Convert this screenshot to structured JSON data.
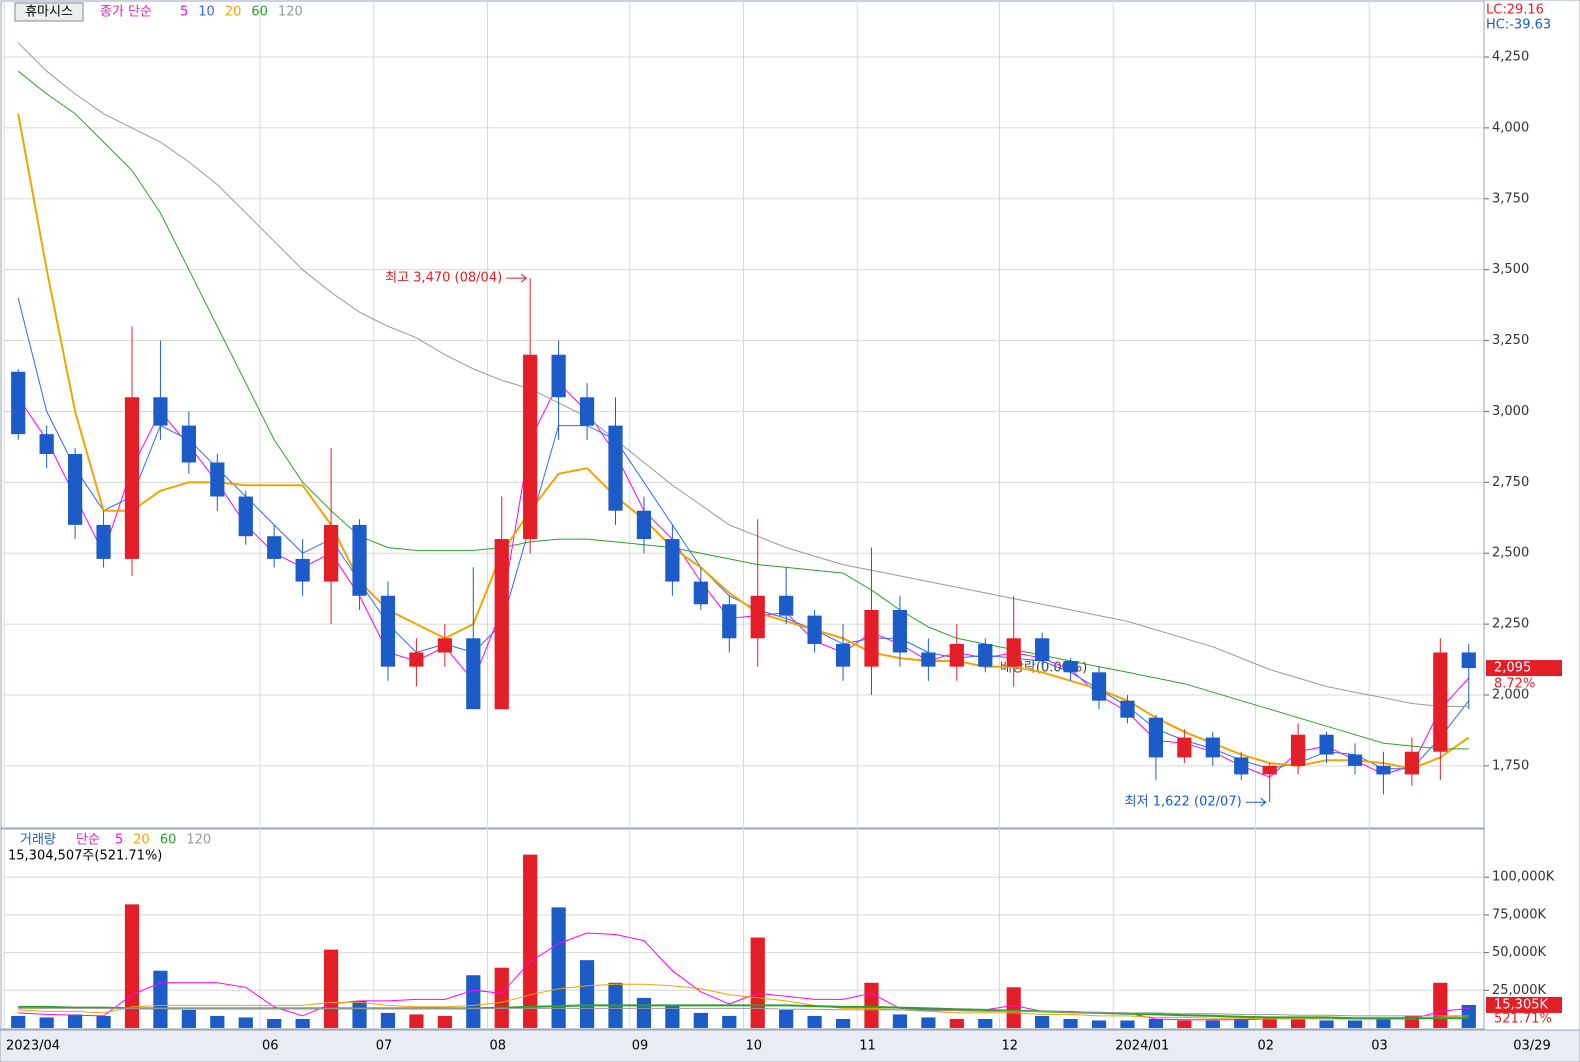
{
  "header": {
    "lc": "LC:29.16",
    "hc": "HC:-39.63",
    "last_date": "03/29"
  },
  "chart_data": [
    {
      "type": "candlestick",
      "title": "휴마시스",
      "legend_prefix": "종가 단순",
      "categories": [
        "2023/04",
        null,
        null,
        null,
        null,
        null,
        null,
        null,
        null,
        "06",
        null,
        null,
        null,
        "07",
        null,
        null,
        null,
        "08",
        null,
        null,
        null,
        null,
        "09",
        null,
        null,
        null,
        "10",
        null,
        null,
        null,
        "11",
        null,
        null,
        null,
        null,
        "12",
        null,
        null,
        null,
        "2024/01",
        null,
        null,
        null,
        null,
        "02",
        null,
        null,
        null,
        "03",
        null,
        null,
        null
      ],
      "open": [
        3140,
        2920,
        2850,
        2600,
        2480,
        3050,
        2950,
        2820,
        2700,
        2560,
        2480,
        2400,
        2600,
        2350,
        2100,
        2150,
        2200,
        1950,
        2550,
        3200,
        3050,
        2950,
        2650,
        2550,
        2400,
        2320,
        2200,
        2350,
        2280,
        2180,
        2100,
        2300,
        2150,
        2100,
        2180,
        2100,
        2200,
        2120,
        2080,
        1980,
        1920,
        1780,
        1850,
        1780,
        1720,
        1750,
        1860,
        1790,
        1750,
        1720,
        1800,
        2150
      ],
      "high": [
        3150,
        2950,
        2870,
        2650,
        3300,
        3250,
        3000,
        2850,
        2720,
        2600,
        2550,
        2870,
        2620,
        2400,
        2200,
        2250,
        2450,
        2700,
        3470,
        3250,
        3100,
        3050,
        2700,
        2600,
        2450,
        2350,
        2620,
        2450,
        2300,
        2250,
        2520,
        2350,
        2200,
        2250,
        2200,
        2350,
        2220,
        2130,
        2100,
        2000,
        1930,
        1880,
        1870,
        1800,
        1760,
        1900,
        1870,
        1830,
        1800,
        1850,
        2200,
        2180
      ],
      "low": [
        2900,
        2800,
        2550,
        2450,
        2420,
        2900,
        2780,
        2650,
        2530,
        2450,
        2350,
        2250,
        2300,
        2050,
        2030,
        2100,
        1950,
        1950,
        2500,
        2900,
        2900,
        2600,
        2500,
        2350,
        2300,
        2150,
        2100,
        2250,
        2150,
        2050,
        2000,
        2100,
        2050,
        2050,
        2080,
        2030,
        2100,
        2050,
        1950,
        1900,
        1700,
        1760,
        1750,
        1700,
        1622,
        1720,
        1760,
        1720,
        1650,
        1680,
        1700,
        1950
      ],
      "close": [
        2920,
        2850,
        2600,
        2480,
        3050,
        2950,
        2820,
        2700,
        2560,
        2480,
        2400,
        2600,
        2350,
        2100,
        2150,
        2200,
        1950,
        2550,
        3200,
        3050,
        2950,
        2650,
        2550,
        2400,
        2320,
        2200,
        2350,
        2280,
        2180,
        2100,
        2300,
        2150,
        2100,
        2180,
        2100,
        2200,
        2120,
        2080,
        1980,
        1920,
        1780,
        1850,
        1780,
        1720,
        1750,
        1860,
        1790,
        1750,
        1720,
        1800,
        2150,
        2095
      ],
      "up_color": "#e41e26",
      "down_color": "#1c5cc8",
      "series": [
        {
          "name": "5",
          "color": "#ff00ff",
          "values": [
            3050,
            2900,
            2700,
            2500,
            2800,
            3000,
            2880,
            2750,
            2600,
            2500,
            2450,
            2500,
            2350,
            2150,
            2120,
            2170,
            2050,
            2300,
            2900,
            3100,
            3000,
            2850,
            2650,
            2550,
            2400,
            2270,
            2280,
            2290,
            2190,
            2150,
            2220,
            2180,
            2120,
            2150,
            2130,
            2150,
            2130,
            2090,
            2000,
            1940,
            1840,
            1830,
            1800,
            1750,
            1710,
            1800,
            1820,
            1770,
            1720,
            1750,
            1950,
            2060
          ]
        },
        {
          "name": "10",
          "color": "#3366ff",
          "values": [
            3400,
            3000,
            2800,
            2650,
            2700,
            2950,
            2900,
            2800,
            2700,
            2600,
            2500,
            2550,
            2400,
            2250,
            2150,
            2180,
            2150,
            2250,
            2600,
            2950,
            2950,
            2900,
            2750,
            2600,
            2450,
            2350,
            2300,
            2270,
            2230,
            2180,
            2200,
            2200,
            2150,
            2130,
            2140,
            2130,
            2120,
            2080,
            2020,
            1960,
            1880,
            1840,
            1810,
            1770,
            1740,
            1760,
            1800,
            1790,
            1740,
            1740,
            1850,
            1980
          ]
        },
        {
          "name": "20",
          "color": "#f0a500",
          "values": [
            4050,
            3500,
            3000,
            2650,
            2650,
            2720,
            2750,
            2750,
            2740,
            2740,
            2740,
            2600,
            2400,
            2300,
            2250,
            2200,
            2250,
            2500,
            2650,
            2780,
            2800,
            2700,
            2620,
            2520,
            2450,
            2360,
            2290,
            2260,
            2230,
            2200,
            2150,
            2130,
            2120,
            2120,
            2100,
            2100,
            2080,
            2050,
            2020,
            1980,
            1920,
            1870,
            1830,
            1790,
            1760,
            1750,
            1770,
            1770,
            1760,
            1740,
            1780,
            1850
          ]
        },
        {
          "name": "60",
          "color": "#2ca02c",
          "values": [
            4200,
            4120,
            4050,
            3950,
            3850,
            3700,
            3500,
            3300,
            3100,
            2900,
            2750,
            2650,
            2560,
            2520,
            2510,
            2510,
            2510,
            2520,
            2540,
            2550,
            2550,
            2540,
            2530,
            2520,
            2500,
            2480,
            2460,
            2450,
            2440,
            2430,
            2370,
            2300,
            2240,
            2200,
            2180,
            2160,
            2140,
            2120,
            2100,
            2080,
            2060,
            2040,
            2010,
            1980,
            1950,
            1920,
            1890,
            1860,
            1830,
            1820,
            1810,
            1810
          ]
        },
        {
          "name": "120",
          "color": "#999999",
          "values": [
            4300,
            4200,
            4120,
            4050,
            4000,
            3950,
            3880,
            3800,
            3700,
            3600,
            3500,
            3420,
            3350,
            3300,
            3260,
            3200,
            3150,
            3110,
            3080,
            3030,
            2980,
            2900,
            2820,
            2740,
            2670,
            2600,
            2560,
            2520,
            2490,
            2460,
            2440,
            2420,
            2400,
            2380,
            2360,
            2340,
            2320,
            2300,
            2280,
            2260,
            2230,
            2200,
            2170,
            2130,
            2090,
            2060,
            2030,
            2010,
            1990,
            1970,
            1960,
            1960
          ]
        }
      ],
      "ylim": [
        1531,
        4451
      ],
      "yticks": [
        {
          "value": 1750,
          "label": "1,750"
        },
        {
          "value": 2000,
          "label": "2,000"
        },
        {
          "value": 2250,
          "label": "2,250"
        },
        {
          "value": 2500,
          "label": "2,500"
        },
        {
          "value": 2750,
          "label": "2,750"
        },
        {
          "value": 3000,
          "label": "3,000"
        },
        {
          "value": 3250,
          "label": "3,250"
        },
        {
          "value": 3500,
          "label": "3,500"
        },
        {
          "value": 3750,
          "label": "3,750"
        },
        {
          "value": 4000,
          "label": "4,000"
        },
        {
          "value": 4250,
          "label": "4,250"
        }
      ],
      "grid": true,
      "annotations": {
        "high": "최고 3,470 (08/04)",
        "low": "최저 1,622 (02/07)",
        "dividend": "배당락(0.00%)"
      },
      "price_tag": {
        "value": 2095,
        "label": "2,095",
        "change": "8.72%"
      }
    },
    {
      "type": "bar",
      "title": "거래량",
      "legend_prefix": "단순",
      "summary": "15,304,507주(521.71%)",
      "values": [
        8000,
        7000,
        9000,
        8000,
        82000,
        38000,
        12000,
        8000,
        7000,
        6000,
        6000,
        52000,
        18000,
        10000,
        9000,
        8000,
        35000,
        40000,
        115000,
        80000,
        45000,
        30000,
        20000,
        15000,
        10000,
        8000,
        60000,
        12000,
        8000,
        6000,
        30000,
        9000,
        7000,
        6000,
        6000,
        27000,
        8000,
        6000,
        5000,
        5000,
        6000,
        5000,
        5000,
        6000,
        7000,
        6000,
        5000,
        5000,
        6000,
        8000,
        30000,
        15305
      ],
      "series": [
        {
          "name": "5",
          "color": "#ff00ff",
          "values": [
            10000,
            9000,
            8500,
            8000,
            22000,
            30000,
            30000,
            30000,
            27000,
            14000,
            8000,
            16000,
            18000,
            18000,
            19000,
            19000,
            25000,
            23000,
            44000,
            56000,
            63000,
            62000,
            58000,
            38000,
            24000,
            16000,
            23000,
            21000,
            19000,
            19000,
            23000,
            13000,
            12000,
            12000,
            12000,
            15000,
            11000,
            11000,
            10000,
            10000,
            6000,
            5500,
            5500,
            5500,
            6000,
            6000,
            6000,
            6000,
            6000,
            6000,
            11000,
            13000
          ]
        },
        {
          "name": "20",
          "color": "#f0a500",
          "values": [
            12000,
            11000,
            11000,
            10000,
            14000,
            15000,
            15000,
            15000,
            15000,
            15000,
            15000,
            17000,
            17000,
            15000,
            14000,
            14000,
            15000,
            17000,
            22000,
            26000,
            28000,
            29000,
            29000,
            28000,
            26000,
            22000,
            20000,
            18000,
            15000,
            13000,
            13000,
            12000,
            11000,
            10000,
            10000,
            10000,
            9000,
            9000,
            8000,
            8000,
            7000,
            7000,
            6500,
            6500,
            6000,
            6000,
            6000,
            6000,
            6000,
            6000,
            7000,
            8000
          ]
        },
        {
          "name": "60",
          "color": "#2ca02c",
          "values": [
            14000,
            14000,
            13500,
            13500,
            13000,
            13000,
            13000,
            13000,
            13000,
            13000,
            13000,
            13000,
            13000,
            13000,
            13000,
            13000,
            13000,
            13500,
            14000,
            14500,
            15000,
            15000,
            15000,
            15000,
            15000,
            15000,
            15000,
            15000,
            14500,
            14000,
            14000,
            13500,
            13000,
            12500,
            12000,
            11500,
            11000,
            10500,
            10000,
            9500,
            9000,
            8500,
            8000,
            7500,
            7000,
            7000,
            7000,
            6500,
            6500,
            6500,
            6500,
            6500
          ]
        },
        {
          "name": "120",
          "color": "#999999",
          "values": [
            13000,
            13000,
            13000,
            13000,
            13000,
            13000,
            13000,
            13000,
            13000,
            13000,
            13000,
            13000,
            13000,
            13000,
            13000,
            13000,
            13000,
            13000,
            13000,
            13000,
            13000,
            13000,
            13000,
            13000,
            13000,
            13000,
            13000,
            12500,
            12500,
            12000,
            12000,
            12000,
            11500,
            11500,
            11000,
            11000,
            11000,
            10500,
            10500,
            10000,
            10000,
            9500,
            9500,
            9000,
            9000,
            8500,
            8500,
            8000,
            8000,
            8000,
            8000,
            8000
          ]
        }
      ],
      "ylim": [
        0,
        130000
      ],
      "yticks": [
        {
          "value": 25000,
          "label": "25,000K"
        },
        {
          "value": 50000,
          "label": "50,000K"
        },
        {
          "value": 75000,
          "label": "75,000K"
        },
        {
          "value": 100000,
          "label": "100,000K"
        }
      ],
      "grid": true,
      "volume_tag": {
        "value": 15305,
        "label": "15,305K",
        "ratio": "521.71%"
      }
    }
  ]
}
